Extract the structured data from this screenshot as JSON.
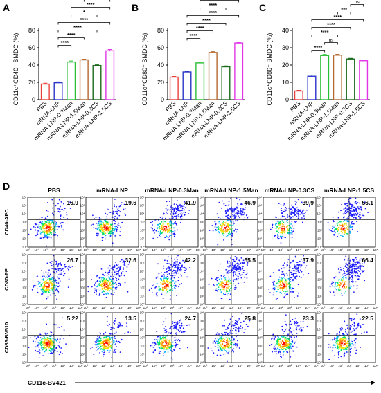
{
  "chart_data": [
    {
      "type": "bar",
      "panel": "A",
      "ylabel": "CD11c⁺CD40⁺ BMDC (%)",
      "ylim": [
        0,
        80
      ],
      "yticks": [
        0,
        20,
        40,
        60,
        80
      ],
      "categories": [
        "PBS",
        "mRNA-LNP",
        "mRNA-LNP-0.3Man",
        "mRNA-LNP-1.5Man",
        "mRNA-LNP-0.3CS",
        "mRNA-LNP-1.5CS"
      ],
      "values": [
        18,
        19.5,
        43.5,
        46,
        39.5,
        56.5
      ],
      "errors": [
        1,
        1,
        1.2,
        0.8,
        0.8,
        1.5
      ],
      "colors": [
        "#e8413c",
        "#2a35c9",
        "#2bbf35",
        "#b56a30",
        "#1a6b1a",
        "#e236e6"
      ],
      "significance": [
        {
          "from": 1,
          "to": 2,
          "label": "****"
        },
        {
          "from": 1,
          "to": 3,
          "label": "****"
        },
        {
          "from": 1,
          "to": 4,
          "label": "****"
        },
        {
          "from": 1,
          "to": 5,
          "label": "****"
        },
        {
          "from": 2,
          "to": 4,
          "label": "*"
        },
        {
          "from": 2,
          "to": 5,
          "label": "****"
        },
        {
          "from": 3,
          "to": 5,
          "label": "****"
        }
      ]
    },
    {
      "type": "bar",
      "panel": "B",
      "ylabel": "CD11c⁺CD80⁺ BMDC (%)",
      "ylim": [
        0,
        80
      ],
      "yticks": [
        0,
        20,
        40,
        60,
        80
      ],
      "categories": [
        "PBS",
        "mRNA-LNP",
        "mRNA-LNP-0.3Man",
        "mRNA-LNP-1.5Man",
        "mRNA-LNP-0.3CS",
        "mRNA-LNP-1.5CS"
      ],
      "values": [
        26,
        32,
        42.5,
        54.5,
        38,
        65.5
      ],
      "errors": [
        0.8,
        0.6,
        1,
        1,
        1,
        0.6
      ],
      "colors": [
        "#e8413c",
        "#2a35c9",
        "#2bbf35",
        "#b56a30",
        "#1a6b1a",
        "#e236e6"
      ],
      "significance": [
        {
          "from": 1,
          "to": 2,
          "label": "****"
        },
        {
          "from": 1,
          "to": 3,
          "label": "****"
        },
        {
          "from": 1,
          "to": 4,
          "label": "****"
        },
        {
          "from": 1,
          "to": 5,
          "label": "****"
        },
        {
          "from": 2,
          "to": 4,
          "label": "****"
        },
        {
          "from": 2,
          "to": 5,
          "label": "****"
        },
        {
          "from": 3,
          "to": 5,
          "label": "****"
        }
      ]
    },
    {
      "type": "bar",
      "panel": "C",
      "ylabel": "CD11c⁺CD86⁺ BMDC (%)",
      "ylim": [
        0,
        40
      ],
      "yticks": [
        0,
        10,
        20,
        30,
        40
      ],
      "categories": [
        "PBS",
        "mRNA-LNP",
        "mRNA-LNP-0.3Man",
        "mRNA-LNP-1.5Man",
        "mRNA-LNP-0.3CS",
        "mRNA-LNP-1.5CS"
      ],
      "values": [
        5,
        13.5,
        25.5,
        25.7,
        23.5,
        22.5
      ],
      "errors": [
        0.4,
        0.7,
        0.6,
        0.5,
        0.4,
        0.5
      ],
      "colors": [
        "#e8413c",
        "#2a35c9",
        "#2bbf35",
        "#b56a30",
        "#1a6b1a",
        "#e236e6"
      ],
      "significance": [
        {
          "from": 1,
          "to": 2,
          "label": "****"
        },
        {
          "from": 2,
          "to": 3,
          "label": "ns"
        },
        {
          "from": 1,
          "to": 3,
          "label": "****"
        },
        {
          "from": 1,
          "to": 4,
          "label": "****"
        },
        {
          "from": 1,
          "to": 5,
          "label": "****"
        },
        {
          "from": 3,
          "to": 4,
          "label": "***"
        },
        {
          "from": 4,
          "to": 5,
          "label": "ns"
        }
      ]
    },
    {
      "type": "scatter",
      "panel": "D",
      "description_type": "flow-cytometry-grid",
      "columns": [
        "PBS",
        "mRNA-LNP",
        "mRNA-LNP-0.3Man",
        "mRNA-LNP-1.5Man",
        "mRNA-LNP-0.3CS",
        "mRNA-LNP-1.5CS"
      ],
      "rows": [
        {
          "ylabel": "CD40-APC",
          "values": [
            "16.9",
            "19.6",
            "41.9",
            "46.9",
            "39.9",
            "56.1"
          ]
        },
        {
          "ylabel": "CD80-PE",
          "values": [
            "26.7",
            "32.6",
            "42.2",
            "55.5",
            "37.9",
            "66.4"
          ]
        },
        {
          "ylabel": "CD86-BV510",
          "values": [
            "5.22",
            "13.5",
            "24.7",
            "25.8",
            "23.3",
            "22.5"
          ]
        }
      ],
      "xlabel": "CD11c-BV421",
      "log_ticks": [
        "10⁰",
        "10¹",
        "10²",
        "10³",
        "10⁴",
        "10⁵",
        "10⁶"
      ]
    }
  ],
  "panel_letters": {
    "a": "A",
    "b": "B",
    "c": "C",
    "d": "D"
  }
}
